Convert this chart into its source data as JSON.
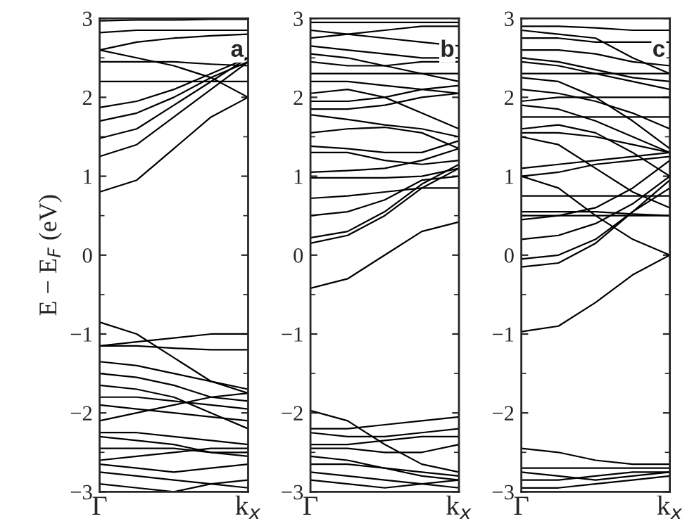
{
  "chart_data": [
    {
      "type": "line",
      "ylabel": "E − E$_{F}$ (eV)",
      "annotations": [
        "a"
      ],
      "categories": [
        "Γ",
        null,
        null,
        null,
        "k$_{x}$"
      ],
      "ylim": [
        -3,
        3
      ],
      "yticks": [
        -3,
        -2,
        -1,
        0,
        1,
        2,
        3
      ],
      "line_style": "solid",
      "series": [
        {
          "color": "#000000",
          "values": [
            0.8,
            0.95,
            1.35,
            1.75,
            2.0
          ]
        },
        {
          "color": "#000000",
          "values": [
            1.25,
            1.4,
            1.75,
            2.1,
            2.45
          ]
        },
        {
          "color": "#000000",
          "values": [
            1.48,
            1.6,
            1.9,
            2.2,
            2.5
          ]
        },
        {
          "color": "#000000",
          "values": [
            1.7,
            1.8,
            2.0,
            2.25,
            2.45
          ]
        },
        {
          "color": "#000000",
          "values": [
            1.87,
            1.95,
            2.1,
            2.3,
            2.5
          ]
        },
        {
          "color": "#000000",
          "values": [
            2.2,
            2.2,
            2.2,
            2.2,
            2.2
          ]
        },
        {
          "color": "#000000",
          "values": [
            2.45,
            2.45,
            2.45,
            2.42,
            2.4
          ]
        },
        {
          "color": "#000000",
          "values": [
            2.6,
            2.5,
            2.4,
            2.25,
            2.0
          ]
        },
        {
          "color": "#000000",
          "values": [
            2.6,
            2.7,
            2.75,
            2.78,
            2.8
          ]
        },
        {
          "color": "#000000",
          "values": [
            2.82,
            2.85,
            2.85,
            2.85,
            2.85
          ]
        },
        {
          "color": "#000000",
          "values": [
            2.97,
            2.98,
            2.98,
            2.99,
            2.99
          ]
        },
        {
          "color": "#000000",
          "values": [
            -0.85,
            -1.0,
            -1.3,
            -1.6,
            -1.75
          ]
        },
        {
          "color": "#000000",
          "values": [
            -1.15,
            -1.1,
            -1.05,
            -1.0,
            -1.0
          ]
        },
        {
          "color": "#000000",
          "values": [
            -1.15,
            -1.15,
            -1.18,
            -1.2,
            -1.2
          ]
        },
        {
          "color": "#000000",
          "values": [
            -1.35,
            -1.4,
            -1.5,
            -1.6,
            -1.7
          ]
        },
        {
          "color": "#000000",
          "values": [
            -1.5,
            -1.55,
            -1.65,
            -1.8,
            -1.85
          ]
        },
        {
          "color": "#000000",
          "values": [
            -1.65,
            -1.7,
            -1.8,
            -2.0,
            -2.2
          ]
        },
        {
          "color": "#000000",
          "values": [
            -1.8,
            -1.8,
            -1.85,
            -1.9,
            -1.95
          ]
        },
        {
          "color": "#000000",
          "values": [
            -1.9,
            -1.95,
            -2.0,
            -2.05,
            -2.1
          ]
        },
        {
          "color": "#000000",
          "values": [
            -2.1,
            -2.0,
            -1.9,
            -1.8,
            -1.75
          ]
        },
        {
          "color": "#000000",
          "values": [
            -2.25,
            -2.25,
            -2.3,
            -2.35,
            -2.4
          ]
        },
        {
          "color": "#000000",
          "values": [
            -2.3,
            -2.35,
            -2.4,
            -2.5,
            -2.55
          ]
        },
        {
          "color": "#000000",
          "values": [
            -2.45,
            -2.45,
            -2.45,
            -2.5,
            -2.5
          ]
        },
        {
          "color": "#000000",
          "values": [
            -2.6,
            -2.55,
            -2.5,
            -2.45,
            -2.45
          ]
        },
        {
          "color": "#000000",
          "values": [
            -2.65,
            -2.7,
            -2.75,
            -2.7,
            -2.65
          ]
        },
        {
          "color": "#000000",
          "values": [
            -2.75,
            -2.8,
            -2.85,
            -2.9,
            -2.95
          ]
        },
        {
          "color": "#000000",
          "values": [
            -2.9,
            -2.95,
            -3.0,
            -2.9,
            -2.85
          ]
        }
      ]
    },
    {
      "type": "line",
      "annotations": [
        "b"
      ],
      "categories": [
        "Γ",
        null,
        null,
        null,
        "k$_{x}$"
      ],
      "ylim": [
        -3,
        3
      ],
      "yticks": [
        -3,
        -2,
        -1,
        0,
        1,
        2,
        3
      ],
      "line_style": "solid",
      "series": [
        {
          "color": "#000000",
          "values": [
            -0.42,
            -0.3,
            0.0,
            0.3,
            0.42
          ]
        },
        {
          "color": "#000000",
          "values": [
            0.15,
            0.25,
            0.5,
            0.85,
            1.1
          ]
        },
        {
          "color": "#000000",
          "values": [
            0.22,
            0.3,
            0.55,
            0.9,
            1.15
          ]
        },
        {
          "color": "#000000",
          "values": [
            0.5,
            0.55,
            0.7,
            0.95,
            1.0
          ]
        },
        {
          "color": "#000000",
          "values": [
            0.72,
            0.75,
            0.8,
            0.85,
            0.85
          ]
        },
        {
          "color": "#000000",
          "values": [
            0.98,
            0.98,
            0.98,
            1.0,
            1.1
          ]
        },
        {
          "color": "#000000",
          "values": [
            1.05,
            1.07,
            1.1,
            1.2,
            1.35
          ]
        },
        {
          "color": "#000000",
          "values": [
            1.3,
            1.3,
            1.2,
            1.15,
            1.2
          ]
        },
        {
          "color": "#000000",
          "values": [
            1.38,
            1.35,
            1.3,
            1.3,
            1.45
          ]
        },
        {
          "color": "#000000",
          "values": [
            1.55,
            1.6,
            1.62,
            1.55,
            1.35
          ]
        },
        {
          "color": "#000000",
          "values": [
            1.78,
            1.72,
            1.65,
            1.6,
            1.5
          ]
        },
        {
          "color": "#000000",
          "values": [
            1.85,
            1.85,
            1.9,
            2.0,
            2.05
          ]
        },
        {
          "color": "#000000",
          "values": [
            1.95,
            1.95,
            2.0,
            2.1,
            2.15
          ]
        },
        {
          "color": "#000000",
          "values": [
            2.05,
            2.1,
            2.0,
            1.8,
            1.6
          ]
        },
        {
          "color": "#000000",
          "values": [
            2.2,
            2.2,
            2.15,
            2.1,
            2.05
          ]
        },
        {
          "color": "#000000",
          "values": [
            2.3,
            2.3,
            2.3,
            2.3,
            2.3
          ]
        },
        {
          "color": "#000000",
          "values": [
            2.45,
            2.4,
            2.4,
            2.45,
            2.45
          ]
        },
        {
          "color": "#000000",
          "values": [
            2.55,
            2.5,
            2.4,
            2.3,
            2.2
          ]
        },
        {
          "color": "#000000",
          "values": [
            2.65,
            2.6,
            2.55,
            2.5,
            2.5
          ]
        },
        {
          "color": "#000000",
          "values": [
            2.75,
            2.8,
            2.85,
            2.9,
            2.9
          ]
        },
        {
          "color": "#000000",
          "values": [
            2.85,
            2.8,
            2.75,
            2.7,
            2.65
          ]
        },
        {
          "color": "#000000",
          "values": [
            2.95,
            2.95,
            2.95,
            2.95,
            2.95
          ]
        },
        {
          "color": "#000000",
          "values": [
            -1.97,
            -2.1,
            -2.4,
            -2.65,
            -2.75
          ]
        },
        {
          "color": "#000000",
          "values": [
            -2.2,
            -2.2,
            -2.15,
            -2.1,
            -2.05
          ]
        },
        {
          "color": "#000000",
          "values": [
            -2.25,
            -2.3,
            -2.3,
            -2.25,
            -2.2
          ]
        },
        {
          "color": "#000000",
          "values": [
            -2.4,
            -2.4,
            -2.35,
            -2.3,
            -2.3
          ]
        },
        {
          "color": "#000000",
          "values": [
            -2.45,
            -2.45,
            -2.5,
            -2.5,
            -2.4
          ]
        },
        {
          "color": "#000000",
          "values": [
            -2.55,
            -2.6,
            -2.7,
            -2.8,
            -2.85
          ]
        },
        {
          "color": "#000000",
          "values": [
            -2.65,
            -2.65,
            -2.7,
            -2.75,
            -2.8
          ]
        },
        {
          "color": "#000000",
          "values": [
            -2.75,
            -2.8,
            -2.85,
            -2.9,
            -2.95
          ]
        },
        {
          "color": "#000000",
          "values": [
            -2.85,
            -2.9,
            -2.95,
            -2.9,
            -2.85
          ]
        }
      ]
    },
    {
      "type": "line",
      "annotations": [
        "c"
      ],
      "categories": [
        "Γ",
        null,
        null,
        null,
        "k$_{x}$"
      ],
      "ylim": [
        -3,
        3
      ],
      "yticks": [
        -3,
        -2,
        -1,
        0,
        1,
        2,
        3
      ],
      "line_style": "solid",
      "series": [
        {
          "color": "#000000",
          "values": [
            -0.97,
            -0.9,
            -0.6,
            -0.25,
            0.0
          ]
        },
        {
          "color": "#000000",
          "values": [
            -0.15,
            -0.1,
            0.15,
            0.55,
            0.85
          ]
        },
        {
          "color": "#000000",
          "values": [
            -0.05,
            0.0,
            0.2,
            0.55,
            0.95
          ]
        },
        {
          "color": "#000000",
          "values": [
            0.2,
            0.25,
            0.4,
            0.65,
            1.0
          ]
        },
        {
          "color": "#000000",
          "values": [
            0.45,
            0.5,
            0.6,
            0.85,
            1.2
          ]
        },
        {
          "color": "#000000",
          "values": [
            0.5,
            0.5,
            0.5,
            0.5,
            0.5
          ]
        },
        {
          "color": "#000000",
          "values": [
            0.55,
            0.55,
            0.55,
            0.52,
            0.5
          ]
        },
        {
          "color": "#000000",
          "values": [
            0.75,
            0.75,
            0.75,
            0.75,
            0.75
          ]
        },
        {
          "color": "#000000",
          "values": [
            1.0,
            0.85,
            0.5,
            0.2,
            0.0
          ]
        },
        {
          "color": "#000000",
          "values": [
            1.0,
            1.05,
            1.15,
            1.2,
            1.25
          ]
        },
        {
          "color": "#000000",
          "values": [
            1.1,
            1.15,
            1.2,
            1.25,
            1.3
          ]
        },
        {
          "color": "#000000",
          "values": [
            1.5,
            1.4,
            1.1,
            0.8,
            0.6
          ]
        },
        {
          "color": "#000000",
          "values": [
            1.55,
            1.55,
            1.5,
            1.4,
            1.3
          ]
        },
        {
          "color": "#000000",
          "values": [
            1.6,
            1.65,
            1.55,
            1.3,
            1.0
          ]
        },
        {
          "color": "#000000",
          "values": [
            1.75,
            1.75,
            1.75,
            1.75,
            1.75
          ]
        },
        {
          "color": "#000000",
          "values": [
            1.9,
            1.85,
            1.7,
            1.5,
            1.3
          ]
        },
        {
          "color": "#000000",
          "values": [
            1.95,
            2.0,
            2.0,
            2.0,
            2.0
          ]
        },
        {
          "color": "#000000",
          "values": [
            2.1,
            2.05,
            1.95,
            1.8,
            1.6
          ]
        },
        {
          "color": "#000000",
          "values": [
            2.25,
            2.2,
            2.0,
            1.7,
            1.35
          ]
        },
        {
          "color": "#000000",
          "values": [
            2.3,
            2.3,
            2.3,
            2.3,
            2.3
          ]
        },
        {
          "color": "#000000",
          "values": [
            2.45,
            2.4,
            2.3,
            2.2,
            2.1
          ]
        },
        {
          "color": "#000000",
          "values": [
            2.5,
            2.45,
            2.35,
            2.25,
            2.2
          ]
        },
        {
          "color": "#000000",
          "values": [
            2.6,
            2.6,
            2.55,
            2.45,
            2.4
          ]
        },
        {
          "color": "#000000",
          "values": [
            2.75,
            2.75,
            2.7,
            2.7,
            2.7
          ]
        },
        {
          "color": "#000000",
          "values": [
            2.85,
            2.8,
            2.75,
            2.5,
            2.3
          ]
        },
        {
          "color": "#000000",
          "values": [
            2.9,
            2.9,
            2.88,
            2.85,
            2.85
          ]
        },
        {
          "color": "#000000",
          "values": [
            -2.45,
            -2.5,
            -2.6,
            -2.65,
            -2.65
          ]
        },
        {
          "color": "#000000",
          "values": [
            -2.7,
            -2.7,
            -2.7,
            -2.7,
            -2.7
          ]
        },
        {
          "color": "#000000",
          "values": [
            -2.75,
            -2.8,
            -2.85,
            -2.8,
            -2.75
          ]
        },
        {
          "color": "#000000",
          "values": [
            -2.85,
            -2.85,
            -2.8,
            -2.75,
            -2.75
          ]
        },
        {
          "color": "#000000",
          "values": [
            -2.95,
            -2.95,
            -2.9,
            -2.85,
            -2.8
          ]
        }
      ]
    }
  ]
}
